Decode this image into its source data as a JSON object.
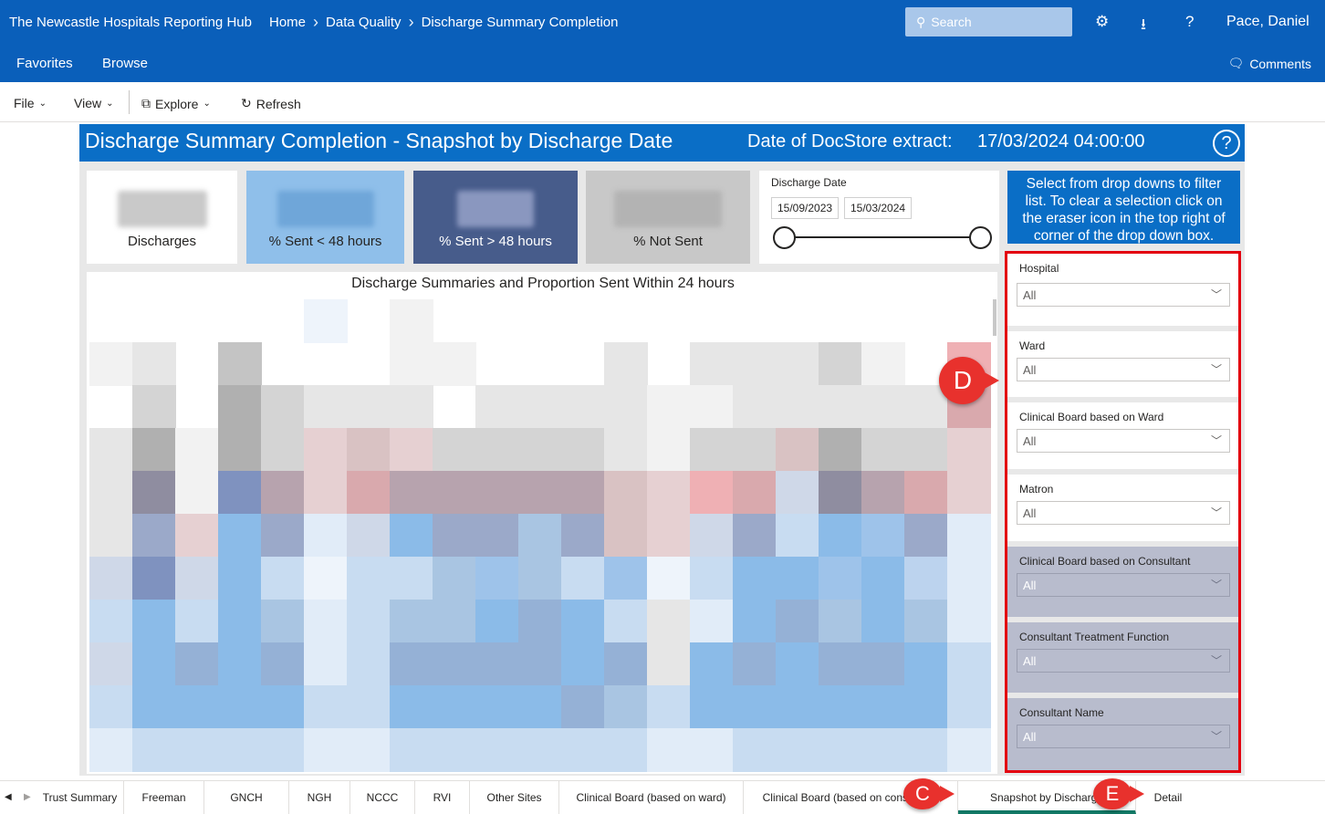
{
  "topbar": {
    "brand": "The Newcastle Hospitals Reporting Hub",
    "breadcrumb": [
      "Home",
      "Data Quality",
      "Discharge Summary Completion"
    ],
    "search_placeholder": "Search",
    "user": "Pace, Daniel",
    "nav": [
      "Favorites",
      "Browse"
    ],
    "comments": "Comments"
  },
  "toolbar": {
    "file": "File",
    "view": "View",
    "explore": "Explore",
    "refresh": "Refresh"
  },
  "report": {
    "title": "Discharge Summary Completion - Snapshot by Discharge Date",
    "extract_label": "Date of DocStore extract:",
    "extract_value": "17/03/2024 04:00:00",
    "help": "?",
    "kpis": [
      {
        "label": "Discharges",
        "bg": "#ffffff",
        "color": "#252423",
        "blur": "#c9c9c9"
      },
      {
        "label": "% Sent < 48 hours",
        "bg": "#8fbfea",
        "color": "#252423",
        "blur": "#6fa6d9"
      },
      {
        "label": "% Sent > 48 hours",
        "bg": "#475c8b",
        "color": "#ffffff",
        "blur": "#8a97bf"
      },
      {
        "label": "% Not Sent",
        "bg": "#c8c8c8",
        "color": "#252423",
        "blur": "#b3b3b3"
      }
    ],
    "date_filter": {
      "caption": "Discharge Date",
      "start": "15/09/2023",
      "end": "15/03/2024"
    },
    "chart_title": "Discharge Summaries and Proportion Sent Within 24 hours",
    "info_text": "Select from drop downs to filter list. To clear a selection click on the eraser icon in the top right of corner of the drop down box.",
    "filters": [
      {
        "label": "Hospital",
        "value": "All",
        "disabled": false
      },
      {
        "label": "Ward",
        "value": "All",
        "disabled": false
      },
      {
        "label": "Clinical Board based on Ward",
        "value": "All",
        "disabled": false
      },
      {
        "label": "Matron",
        "value": "All",
        "disabled": false
      },
      {
        "label": "Clinical Board based on Consultant",
        "value": "All",
        "disabled": true
      },
      {
        "label": "Consultant Treatment Function",
        "value": "All",
        "disabled": true
      },
      {
        "label": "Consultant Name",
        "value": "All",
        "disabled": true
      }
    ]
  },
  "tabs": [
    "Trust Summary",
    "Freeman",
    "GNCH",
    "NGH",
    "NCCC",
    "RVI",
    "Other Sites",
    "Clinical Board (based on ward)",
    "Clinical Board (based on consultant)",
    "Snapshot by Discharge",
    "Detail"
  ],
  "active_tab": "Snapshot by Discharge",
  "callouts": {
    "c": "C",
    "d": "D",
    "e": "E"
  }
}
